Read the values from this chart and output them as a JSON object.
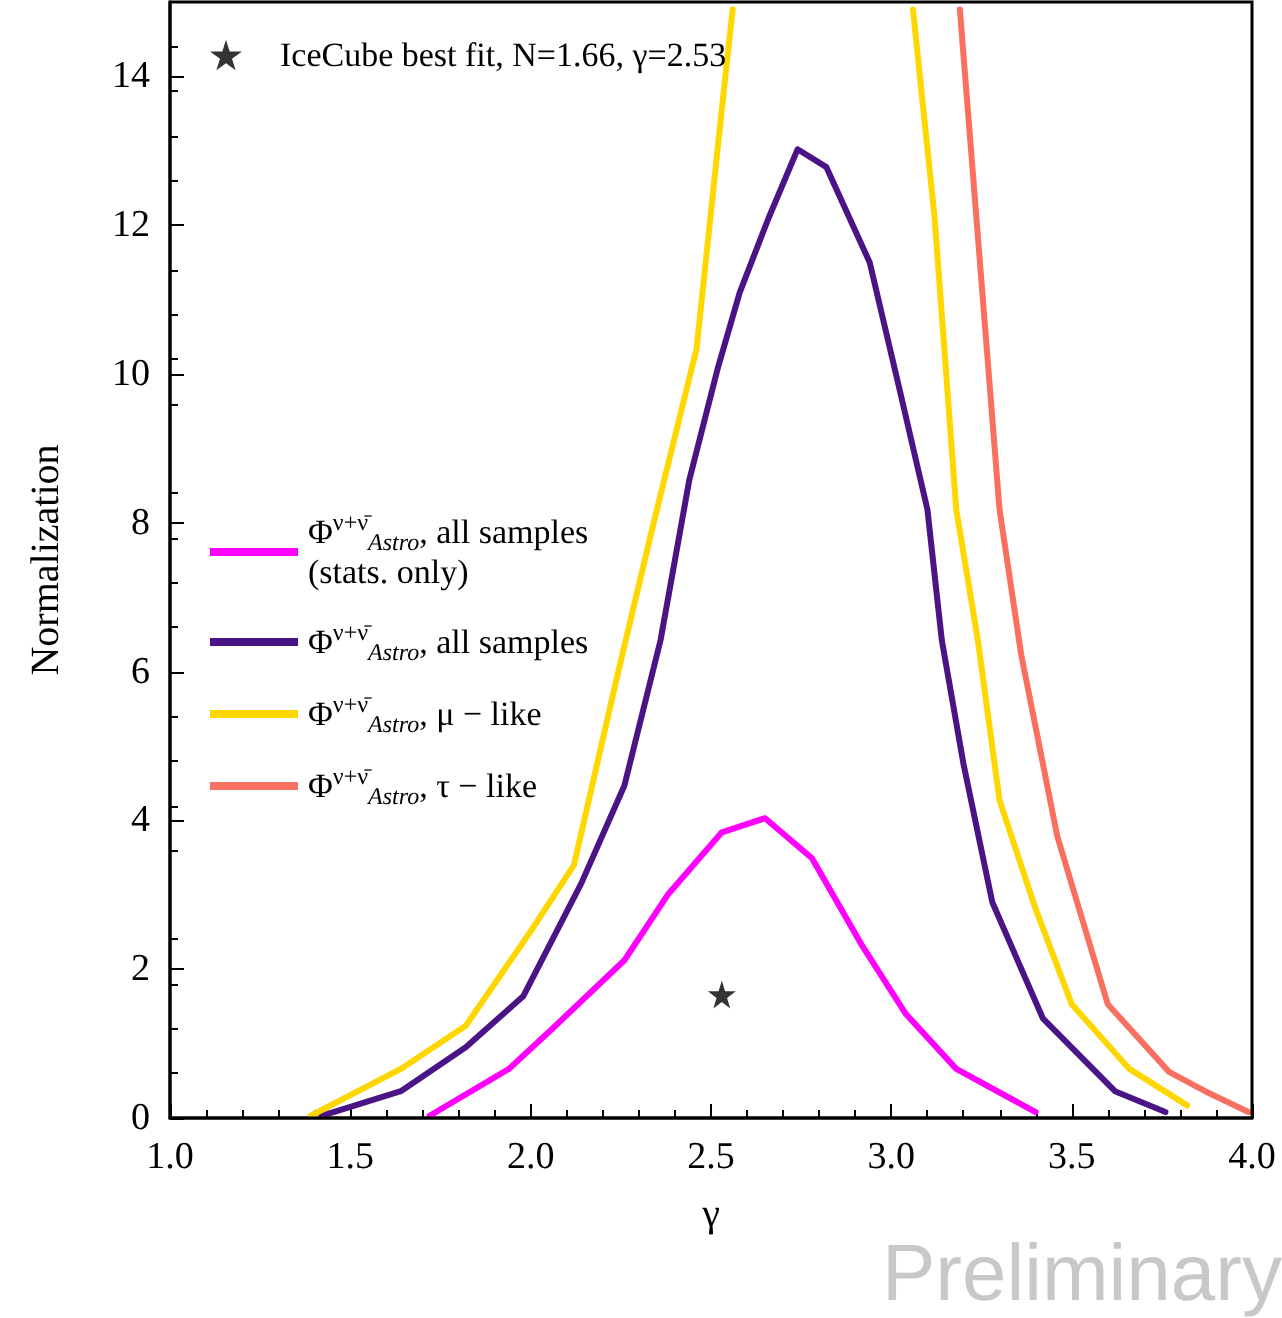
{
  "chart_data": {
    "type": "line",
    "xlabel": "γ",
    "ylabel": "Normalization",
    "xlim": [
      1.0,
      4.0
    ],
    "ylim": [
      0,
      15
    ],
    "xticks": [
      {
        "value": 1,
        "label": "1.0"
      },
      {
        "value": 1.5,
        "label": "1.5"
      },
      {
        "value": 2,
        "label": "2.0"
      },
      {
        "value": 2.5,
        "label": "2.5"
      },
      {
        "value": 3,
        "label": "3.0"
      },
      {
        "value": 3.5,
        "label": "3.5"
      },
      {
        "value": 4,
        "label": "4.0"
      }
    ],
    "yticks": [
      0,
      2,
      4,
      6,
      8,
      10,
      12,
      14
    ],
    "legend": "left",
    "grid": false,
    "line_style": "solid",
    "annotations": [
      "Preliminary"
    ],
    "series": [
      {
        "name": "Φ$^{ν+ν̄}$$_{Astro}$, all samples\n(stats. only)",
        "color": "#ff00ff",
        "x": [
          1.72,
          1.94,
          2.06,
          2.26,
          2.38,
          2.53,
          2.65,
          2.78,
          2.92,
          3.04,
          3.18,
          3.4
        ],
        "values": [
          0.03,
          0.66,
          1.2,
          2.12,
          3.0,
          3.84,
          4.03,
          3.49,
          2.31,
          1.4,
          0.66,
          0.08
        ]
      },
      {
        "name": "Φ$^{ν+ν̄}$$_{Astro}$, all samples",
        "color": "#4a1486",
        "x": [
          1.42,
          1.64,
          1.82,
          1.98,
          2.14,
          2.26,
          2.36,
          2.44,
          2.52,
          2.58,
          2.66,
          2.74,
          2.82,
          2.94,
          3.02,
          3.1,
          3.14,
          3.2,
          3.28,
          3.42,
          3.62,
          3.76
        ],
        "values": [
          0.03,
          0.36,
          0.95,
          1.64,
          3.15,
          4.47,
          6.42,
          8.58,
          10.1,
          11.1,
          12.1,
          13.02,
          12.78,
          11.5,
          9.85,
          8.18,
          6.42,
          4.76,
          2.9,
          1.34,
          0.36,
          0.08
        ]
      },
      {
        "name": "Φ$^{ν+ν̄}$$_{Astro}$, μ − like",
        "color": "#ffd700",
        "x": [
          1.39,
          1.64,
          1.82,
          2.0,
          2.12,
          2.24,
          2.34,
          2.46,
          2.53,
          2.56,
          2.81,
          3.06,
          3.12,
          3.18,
          3.24,
          3.3,
          3.4,
          3.5,
          3.66,
          3.82
        ],
        "values": [
          0.03,
          0.66,
          1.24,
          2.51,
          3.4,
          5.94,
          7.98,
          10.34,
          13.56,
          14.9,
          null,
          14.9,
          12.1,
          8.18,
          6.42,
          4.27,
          2.81,
          1.53,
          0.66,
          0.17
        ]
      },
      {
        "name": "Φ$^{ν+ν̄}$$_{Astro}$, τ − like",
        "color": "#fa7060",
        "x": [
          3.19,
          3.22,
          3.3,
          3.36,
          3.46,
          3.6,
          3.77,
          3.87,
          3.99
        ],
        "values": [
          14.9,
          13.07,
          8.18,
          6.23,
          3.79,
          1.53,
          0.62,
          0.36,
          0.08
        ]
      },
      {
        "type": "scatter",
        "name": "IceCube best fit, N=1.66, γ=2.53",
        "color": "#000000",
        "marker": "star",
        "x": [
          2.53
        ],
        "values": [
          1.66
        ]
      }
    ]
  }
}
